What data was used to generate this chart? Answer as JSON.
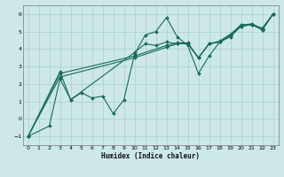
{
  "xlabel": "Humidex (Indice chaleur)",
  "background_color": "#cce8e8",
  "line_color": "#1a6b5a",
  "xlim": [
    -0.5,
    23.5
  ],
  "ylim": [
    -1.5,
    6.5
  ],
  "xticks": [
    0,
    1,
    2,
    3,
    4,
    5,
    6,
    7,
    8,
    9,
    10,
    11,
    12,
    13,
    14,
    15,
    16,
    17,
    18,
    19,
    20,
    21,
    22,
    23
  ],
  "yticks": [
    -1,
    0,
    1,
    2,
    3,
    4,
    5,
    6
  ],
  "grid_color": "#aad0d0",
  "series": [
    {
      "x": [
        0,
        2,
        3,
        4,
        5,
        6,
        7,
        8,
        9,
        10,
        11,
        12,
        13,
        14,
        15,
        16,
        17,
        18,
        19,
        20,
        21,
        22,
        23
      ],
      "y": [
        -1.0,
        -0.4,
        2.3,
        1.1,
        1.5,
        1.2,
        1.3,
        0.3,
        1.1,
        3.7,
        4.8,
        5.0,
        5.8,
        4.7,
        4.2,
        2.6,
        3.6,
        4.4,
        4.7,
        5.3,
        5.4,
        5.2,
        6.0
      ]
    },
    {
      "x": [
        0,
        3,
        4,
        10,
        11,
        12,
        13,
        14,
        15,
        16,
        17,
        18,
        19,
        20,
        21,
        22,
        23
      ],
      "y": [
        -1.0,
        2.7,
        1.1,
        3.8,
        4.3,
        4.2,
        4.4,
        4.3,
        4.3,
        3.5,
        4.3,
        4.4,
        4.8,
        5.4,
        5.4,
        5.1,
        6.0
      ]
    },
    {
      "x": [
        0,
        3,
        10,
        13,
        14,
        15,
        16,
        17,
        18,
        19,
        20,
        21,
        22,
        23
      ],
      "y": [
        -1.0,
        2.4,
        3.5,
        4.1,
        4.3,
        4.3,
        3.5,
        4.3,
        4.4,
        4.8,
        5.3,
        5.4,
        5.1,
        6.0
      ]
    },
    {
      "x": [
        0,
        3,
        10,
        13,
        14,
        15,
        16,
        17,
        18,
        19,
        20,
        21,
        22,
        23
      ],
      "y": [
        -1.0,
        2.6,
        3.6,
        4.2,
        4.35,
        4.35,
        3.5,
        4.3,
        4.45,
        4.85,
        5.35,
        5.45,
        5.15,
        6.0
      ]
    }
  ]
}
